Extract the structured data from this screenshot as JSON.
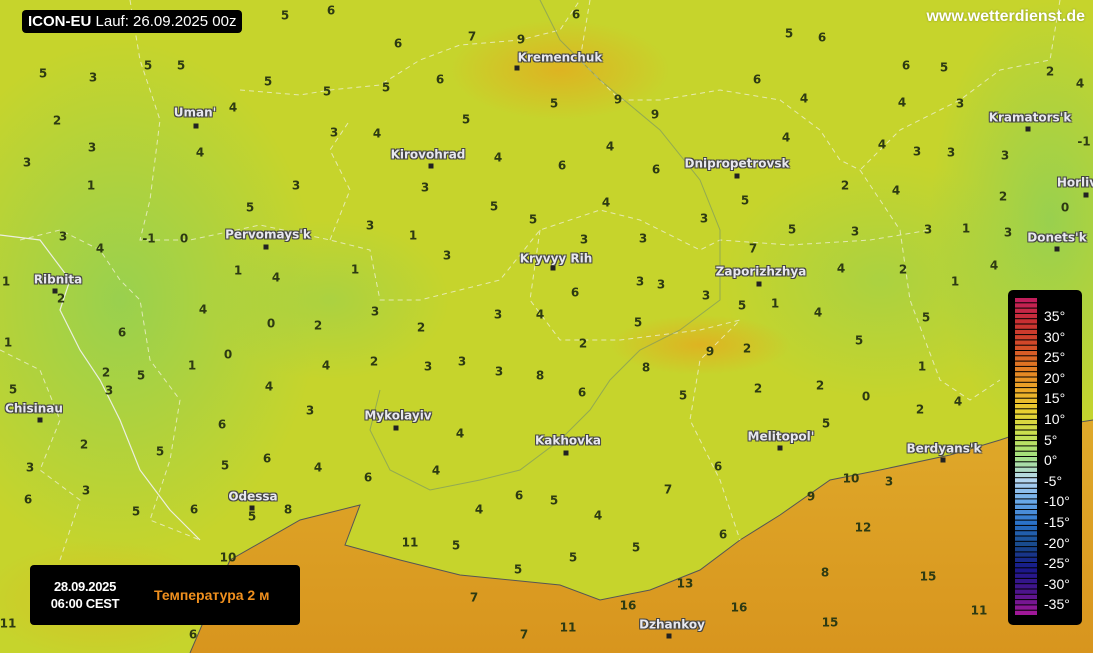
{
  "header": {
    "model": "ICON-EU",
    "run_label": "Lauf: 26.09.2025 00z",
    "site": "www.wetterdienst.de"
  },
  "info": {
    "date": "28.09.2025",
    "time": "06:00 CEST",
    "parameter": "Температура 2 м"
  },
  "colors": {
    "land_warm": "#c9d62a",
    "land_cool": "#9ed24c",
    "sea": "#dca22a",
    "param_text": "#f0901e"
  },
  "legend": {
    "labels": [
      "35°",
      "30°",
      "25°",
      "20°",
      "15°",
      "10°",
      "5°",
      "0°",
      "-5°",
      "-10°",
      "-15°",
      "-20°",
      "-25°",
      "-30°",
      "-35°"
    ],
    "colors": [
      "#c21e5a",
      "#c83030",
      "#d24a28",
      "#e07a22",
      "#eca828",
      "#e8d030",
      "#c8e050",
      "#a0e080",
      "#b8d8f0",
      "#68a8e8",
      "#2870c8",
      "#184888",
      "#18188a",
      "#48148a",
      "#a01898"
    ]
  },
  "cities": [
    "Kremenchuk",
    "Uman'",
    "Kirovohrad",
    "Dnipropetrovsk",
    "Kramators'k",
    "Horlivka",
    "Donets'k",
    "Pervomays'k",
    "Kryvyy Rih",
    "Zaporizhzhya",
    "Ribnita",
    "Chisinau",
    "Mykolayiv",
    "Kakhovka",
    "Melitopol'",
    "Berdyans'k",
    "Odessa",
    "Dzhankoy"
  ],
  "temperatures": [
    5,
    6,
    6,
    7,
    9,
    6,
    5,
    6,
    6,
    5,
    2,
    4,
    5,
    3,
    5,
    5,
    5,
    5,
    5,
    6,
    5,
    9,
    9,
    6,
    4,
    4,
    3,
    2,
    4,
    3,
    4,
    3,
    4,
    5,
    3,
    4,
    6,
    6,
    4,
    4,
    4,
    3,
    3,
    3,
    -1,
    1,
    3,
    3,
    2,
    4,
    2,
    0,
    5,
    5,
    4,
    3,
    5,
    5,
    3,
    1,
    3,
    4,
    -1,
    0,
    3,
    3,
    3,
    7,
    5,
    3,
    3,
    1,
    3,
    1,
    4,
    1,
    3,
    6,
    3,
    3,
    5,
    4,
    2,
    1,
    4,
    1,
    2,
    4,
    0,
    2,
    3,
    2,
    3,
    4,
    5,
    1,
    4,
    5,
    6,
    2,
    1,
    1,
    0,
    4,
    2,
    3,
    3,
    3,
    8,
    8,
    9,
    2,
    5,
    1,
    5,
    2,
    4,
    6,
    5,
    2,
    2,
    0,
    5,
    3,
    3,
    2,
    4,
    6,
    4,
    5,
    2,
    5,
    5,
    6,
    4,
    4,
    6,
    10,
    3,
    3,
    3,
    6,
    5,
    6,
    6,
    5,
    4,
    4,
    7,
    9,
    8,
    5,
    6,
    11,
    5,
    5,
    5,
    6,
    12,
    10,
    5,
    7,
    13,
    8,
    15,
    16,
    11,
    15,
    16,
    7,
    11,
    6,
    11,
    4
  ]
}
